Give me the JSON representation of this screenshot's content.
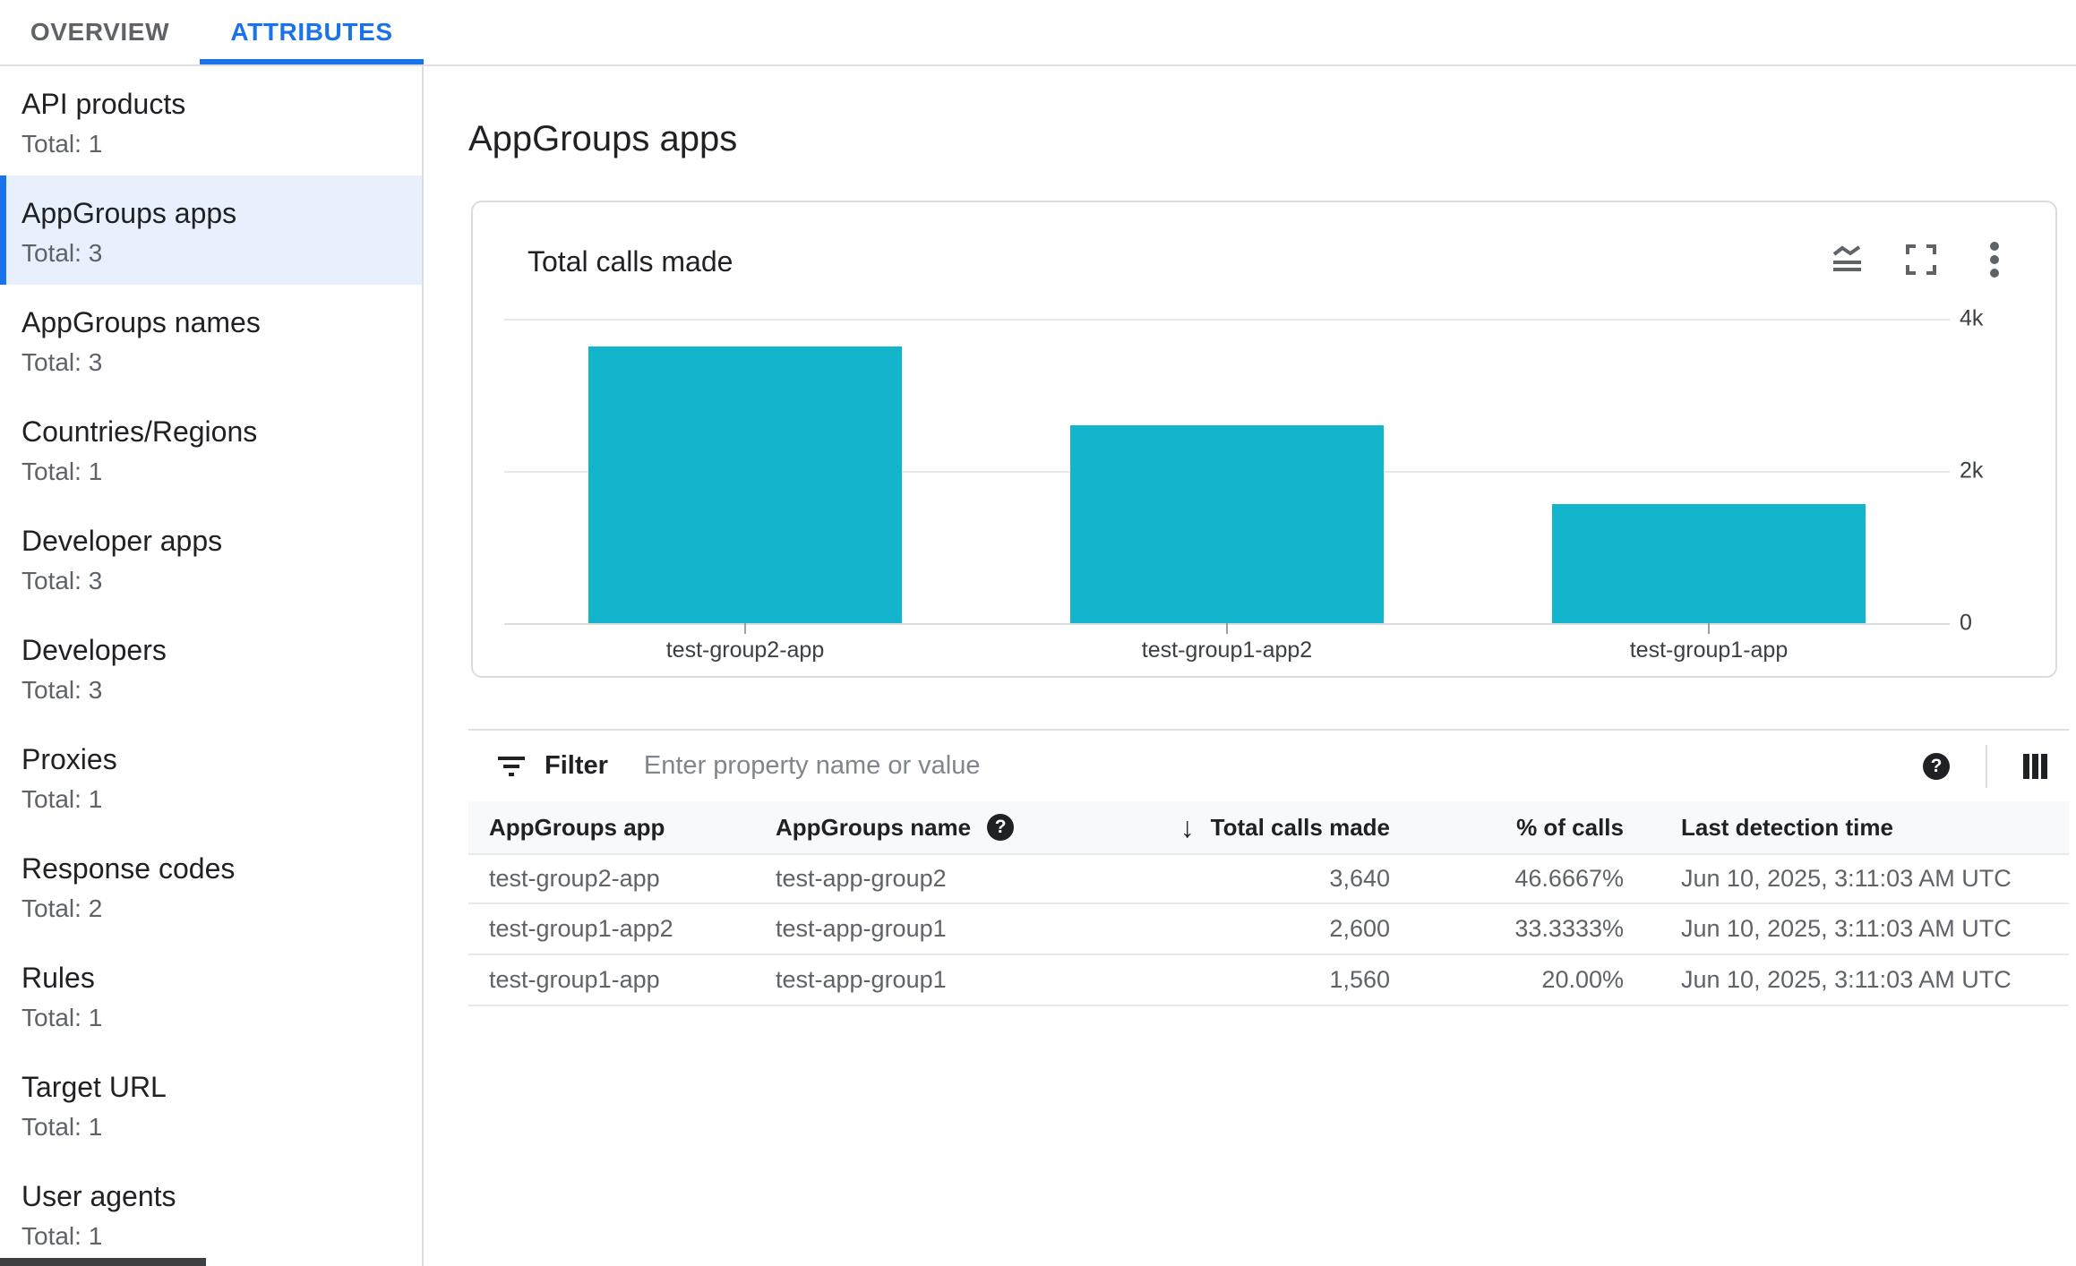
{
  "header": {
    "tabs": [
      {
        "label": "OVERVIEW",
        "active": false
      },
      {
        "label": "ATTRIBUTES",
        "active": true
      }
    ]
  },
  "sidebar": {
    "items": [
      {
        "label": "API products",
        "total": "Total: 1",
        "selected": false
      },
      {
        "label": "AppGroups apps",
        "total": "Total: 3",
        "selected": true
      },
      {
        "label": "AppGroups names",
        "total": "Total: 3",
        "selected": false
      },
      {
        "label": "Countries/Regions",
        "total": "Total: 1",
        "selected": false
      },
      {
        "label": "Developer apps",
        "total": "Total: 3",
        "selected": false
      },
      {
        "label": "Developers",
        "total": "Total: 3",
        "selected": false
      },
      {
        "label": "Proxies",
        "total": "Total: 1",
        "selected": false
      },
      {
        "label": "Response codes",
        "total": "Total: 2",
        "selected": false
      },
      {
        "label": "Rules",
        "total": "Total: 1",
        "selected": false
      },
      {
        "label": "Target URL",
        "total": "Total: 1",
        "selected": false
      },
      {
        "label": "User agents",
        "total": "Total: 1",
        "selected": false
      }
    ]
  },
  "main": {
    "page_title": "AppGroups apps",
    "card": {
      "title": "Total calls made",
      "icons": [
        "area-chart-toggle-icon",
        "fullscreen-icon",
        "more-vert-icon"
      ],
      "chart_data": {
        "type": "bar",
        "categories": [
          "test-group2-app",
          "test-group1-app2",
          "test-group1-app"
        ],
        "values": [
          3640,
          2600,
          1560
        ],
        "title": "Total calls made",
        "xlabel": "",
        "ylabel": "",
        "ylim": [
          0,
          4000
        ],
        "yticks": [
          {
            "label": "4k",
            "value": 4000
          },
          {
            "label": "2k",
            "value": 2000
          },
          {
            "label": "0",
            "value": 0
          }
        ],
        "bar_color": "#12b5cb",
        "grid": "horizontal",
        "legend": "none",
        "y_axis_side": "right"
      }
    },
    "filter": {
      "label": "Filter",
      "placeholder": "Enter property name or value"
    },
    "table": {
      "columns": [
        {
          "label": "AppGroups app"
        },
        {
          "label": "AppGroups name",
          "help": true
        },
        {
          "label": "Total calls made",
          "sorted": "desc",
          "align": "right"
        },
        {
          "label": "% of calls",
          "align": "right"
        },
        {
          "label": "Last detection time"
        }
      ],
      "rows": [
        {
          "app": "test-group2-app",
          "name": "test-app-group2",
          "calls": "3,640",
          "pct": "46.6667%",
          "time": "Jun 10, 2025, 3:11:03 AM UTC"
        },
        {
          "app": "test-group1-app2",
          "name": "test-app-group1",
          "calls": "2,600",
          "pct": "33.3333%",
          "time": "Jun 10, 2025, 3:11:03 AM UTC"
        },
        {
          "app": "test-group1-app",
          "name": "test-app-group1",
          "calls": "1,560",
          "pct": "20.00%",
          "time": "Jun 10, 2025, 3:11:03 AM UTC"
        }
      ]
    }
  },
  "colors": {
    "accent": "#1a73e8",
    "selected_item_bg": "#e8f0fe",
    "bar": "#12b5cb",
    "text": "#202124",
    "secondary_text": "#5f6368",
    "border": "#dadce0",
    "table_header_bg": "#f8f9fa"
  }
}
